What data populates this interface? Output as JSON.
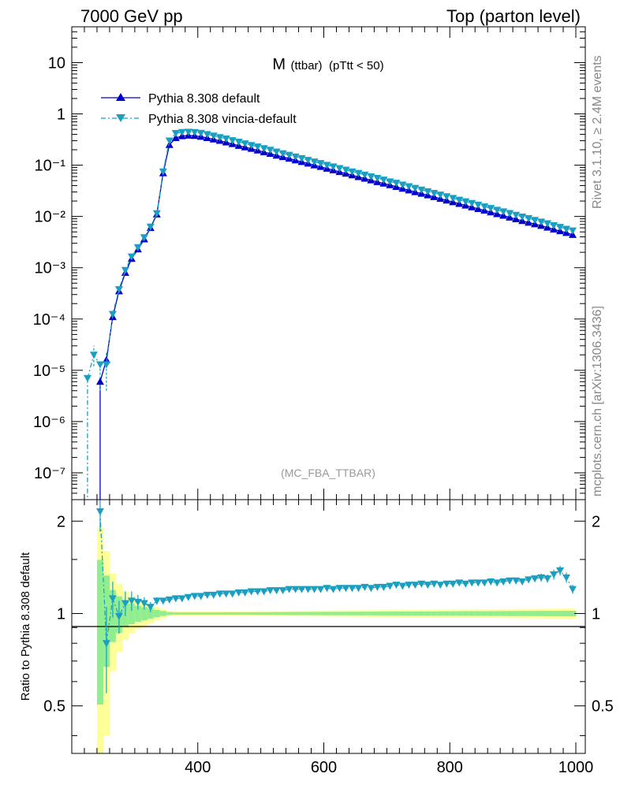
{
  "header": {
    "left": "7000 GeV pp",
    "right": "Top (parton level)"
  },
  "side_labels": {
    "rivet": "Rivet 3.1.10, ≥ 2.4M events",
    "mcplots": "mcplots.cern.ch [arXiv:1306.3436]"
  },
  "colors": {
    "pythia_default": "#0000cc",
    "vincia": "#1a9fc0",
    "band_inner": "#90ee90",
    "band_outer": "#ffff99"
  },
  "chart_data": [
    {
      "type": "line",
      "title_main": "M",
      "title_sub": "(ttbar)",
      "title_cut": "(pTtt < 50)",
      "watermark": "(MC_FBA_TTBAR)",
      "y_scale": "log",
      "xlim": [
        200,
        1000
      ],
      "ylim": [
        3e-08,
        50
      ],
      "x_ticks": [
        400,
        600,
        800,
        1000
      ],
      "y_tick_labels": [
        "10",
        "1",
        "10⁻¹",
        "10⁻²",
        "10⁻³",
        "10⁻⁴",
        "10⁻⁵",
        "10⁻⁶",
        "10⁻⁷"
      ],
      "legend_position": "top-left",
      "legend": [
        "Pythia 8.308 default",
        "Pythia 8.308 vincia-default"
      ],
      "series": [
        {
          "name": "Pythia 8.308 default",
          "x": [
            245,
            255,
            265,
            275,
            285,
            295,
            305,
            315,
            325,
            335,
            345,
            355,
            365,
            375,
            385,
            395,
            405,
            415,
            425,
            435,
            445,
            455,
            465,
            475,
            485,
            495,
            505,
            515,
            525,
            535,
            545,
            555,
            565,
            575,
            585,
            595,
            605,
            615,
            625,
            635,
            645,
            655,
            665,
            675,
            685,
            695,
            705,
            715,
            725,
            735,
            745,
            755,
            765,
            775,
            785,
            795,
            805,
            815,
            825,
            835,
            845,
            855,
            865,
            875,
            885,
            895,
            905,
            915,
            925,
            935,
            945,
            955,
            965,
            975,
            985,
            995
          ],
          "values": [
            6e-06,
            1.6e-05,
            0.00011,
            0.00035,
            0.0008,
            0.0015,
            0.0023,
            0.0036,
            0.006,
            0.011,
            0.07,
            0.25,
            0.34,
            0.37,
            0.38,
            0.375,
            0.36,
            0.34,
            0.32,
            0.3,
            0.28,
            0.26,
            0.24,
            0.225,
            0.21,
            0.195,
            0.18,
            0.168,
            0.155,
            0.145,
            0.135,
            0.125,
            0.116,
            0.108,
            0.1,
            0.093,
            0.086,
            0.08,
            0.074,
            0.069,
            0.064,
            0.059,
            0.055,
            0.051,
            0.047,
            0.044,
            0.041,
            0.038,
            0.035,
            0.0325,
            0.03,
            0.028,
            0.026,
            0.024,
            0.0222,
            0.0206,
            0.0191,
            0.0177,
            0.0164,
            0.0152,
            0.0141,
            0.0131,
            0.0121,
            0.0112,
            0.0104,
            0.0096,
            0.0089,
            0.0082,
            0.0076,
            0.0071,
            0.0066,
            0.0061,
            0.0056,
            0.0052,
            0.0048,
            0.0044
          ]
        },
        {
          "name": "Pythia 8.308 vincia-default",
          "x": [
            225,
            235,
            245,
            255,
            265,
            275,
            285,
            295,
            305,
            315,
            325,
            335,
            345,
            355,
            365,
            375,
            385,
            395,
            405,
            415,
            425,
            435,
            445,
            455,
            465,
            475,
            485,
            495,
            505,
            515,
            525,
            535,
            545,
            555,
            565,
            575,
            585,
            595,
            605,
            615,
            625,
            635,
            645,
            655,
            665,
            675,
            685,
            695,
            705,
            715,
            725,
            735,
            745,
            755,
            765,
            775,
            785,
            795,
            805,
            815,
            825,
            835,
            845,
            855,
            865,
            875,
            885,
            895,
            905,
            915,
            925,
            935,
            945,
            955,
            965,
            975,
            985,
            995
          ],
          "values": [
            7e-06,
            2e-05,
            1.3e-05,
            1.3e-05,
            0.000125,
            0.00038,
            0.0009,
            0.00165,
            0.0025,
            0.0039,
            0.0063,
            0.0115,
            0.075,
            0.3,
            0.42,
            0.44,
            0.445,
            0.44,
            0.425,
            0.4,
            0.375,
            0.35,
            0.33,
            0.305,
            0.285,
            0.265,
            0.245,
            0.23,
            0.213,
            0.198,
            0.183,
            0.17,
            0.158,
            0.147,
            0.136,
            0.126,
            0.117,
            0.109,
            0.101,
            0.094,
            0.087,
            0.081,
            0.075,
            0.07,
            0.065,
            0.06,
            0.056,
            0.052,
            0.048,
            0.045,
            0.0416,
            0.0386,
            0.0358,
            0.0332,
            0.0308,
            0.0286,
            0.0265,
            0.0246,
            0.0228,
            0.0211,
            0.0196,
            0.0182,
            0.0169,
            0.0156,
            0.0145,
            0.0134,
            0.0125,
            0.0116,
            0.0107,
            0.0099,
            0.0092,
            0.0085,
            0.0079,
            0.0073,
            0.0067,
            0.0062,
            0.0057,
            0.0053
          ]
        }
      ]
    },
    {
      "type": "line",
      "ylabel": "Ratio to Pythia 8.308 default",
      "xlim": [
        200,
        1000
      ],
      "ylim": [
        0.35,
        2.35
      ],
      "y_scale": "log",
      "x_tick_labels": [
        "400",
        "600",
        "800",
        "1000"
      ],
      "y_tick_labels": [
        "2",
        "1",
        "0.5"
      ],
      "reference_line": 1,
      "series": [
        {
          "name": "Pythia 8.308 vincia-default",
          "x": [
            245,
            255,
            265,
            275,
            285,
            295,
            305,
            315,
            325,
            335,
            345,
            355,
            365,
            375,
            385,
            395,
            405,
            415,
            425,
            435,
            445,
            455,
            465,
            475,
            485,
            495,
            505,
            515,
            525,
            535,
            545,
            555,
            565,
            575,
            585,
            595,
            605,
            615,
            625,
            635,
            645,
            655,
            665,
            675,
            685,
            695,
            705,
            715,
            725,
            735,
            745,
            755,
            765,
            775,
            785,
            795,
            805,
            815,
            825,
            835,
            845,
            855,
            865,
            875,
            885,
            895,
            905,
            915,
            925,
            935,
            945,
            955,
            965,
            975,
            985,
            995
          ],
          "values": [
            2.15,
            0.8,
            1.12,
            0.98,
            1.08,
            1.1,
            1.09,
            1.08,
            1.05,
            1.1,
            1.1,
            1.11,
            1.12,
            1.12,
            1.13,
            1.14,
            1.14,
            1.15,
            1.15,
            1.16,
            1.16,
            1.16,
            1.17,
            1.17,
            1.18,
            1.18,
            1.18,
            1.19,
            1.19,
            1.19,
            1.2,
            1.2,
            1.2,
            1.2,
            1.2,
            1.2,
            1.21,
            1.2,
            1.21,
            1.21,
            1.21,
            1.21,
            1.22,
            1.21,
            1.22,
            1.22,
            1.23,
            1.24,
            1.23,
            1.24,
            1.24,
            1.25,
            1.24,
            1.25,
            1.24,
            1.25,
            1.25,
            1.26,
            1.25,
            1.26,
            1.26,
            1.26,
            1.27,
            1.26,
            1.27,
            1.28,
            1.28,
            1.27,
            1.29,
            1.3,
            1.31,
            1.3,
            1.34,
            1.38,
            1.31,
            1.2
          ],
          "errors": [
            0.3,
            0.25,
            0.15,
            0.12,
            0.1,
            0.08,
            0.06,
            0.05,
            0.04,
            0.03,
            0.02,
            0.01,
            0.01,
            0.01,
            0.01,
            0.01,
            0.01,
            0.01,
            0.01,
            0.01,
            0.01,
            0.01,
            0.01,
            0.01,
            0.01,
            0.01,
            0.01,
            0.01,
            0.01,
            0.01,
            0.01,
            0.01,
            0.01,
            0.01,
            0.01,
            0.01,
            0.01,
            0.01,
            0.01,
            0.01,
            0.01,
            0.01,
            0.01,
            0.01,
            0.01,
            0.01,
            0.01,
            0.01,
            0.01,
            0.01,
            0.01,
            0.01,
            0.01,
            0.01,
            0.01,
            0.01,
            0.01,
            0.01,
            0.01,
            0.01,
            0.01,
            0.01,
            0.01,
            0.01,
            0.01,
            0.01,
            0.02,
            0.02,
            0.02,
            0.03,
            0.04,
            0.04,
            0.05,
            0.05,
            0.05,
            0.04
          ]
        }
      ]
    }
  ]
}
